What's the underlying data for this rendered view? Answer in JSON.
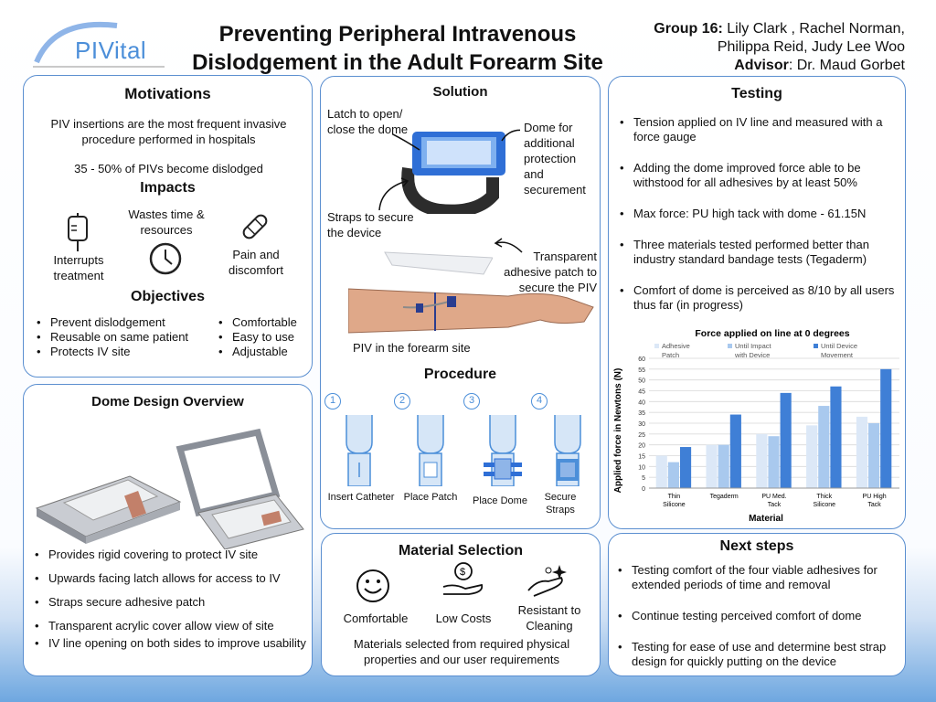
{
  "logo": {
    "text": "PIVital"
  },
  "title": {
    "line1": "Preventing Peripheral Intravenous",
    "line2": "Dislodgement in the Adult Forearm Site"
  },
  "group": {
    "label": "Group 16:",
    "line1": " Lily Clark , Rachel Norman,",
    "line2": "Philippa Reid, Judy Lee Woo",
    "advisor_label": "Advisor",
    "advisor_value": ": Dr. Maud Gorbet"
  },
  "motivations": {
    "title": "Motivations",
    "text1": "PIV insertions are the most frequent invasive procedure performed in hospitals",
    "text2": "35 - 50% of PIVs become dislodged",
    "impacts_title": "Impacts",
    "impact1": "Interrupts treatment",
    "impact2": "Wastes time & resources",
    "impact3": "Pain and discomfort",
    "objectives_title": "Objectives",
    "objectives_left": [
      "Prevent dislodgement",
      "Reusable on same patient",
      "Protects IV site"
    ],
    "objectives_right": [
      "Comfortable",
      "Easy to use",
      "Adjustable"
    ]
  },
  "dome": {
    "title": "Dome Design Overview",
    "bullets": [
      "Provides rigid covering to protect IV site",
      "Upwards facing latch allows for access to IV",
      "Straps secure adhesive patch",
      "Transparent acrylic cover allow view of site",
      "IV line opening on both sides to improve usability"
    ]
  },
  "solution": {
    "title": "Solution",
    "latch": "Latch to open/ close the dome",
    "dome": "Dome for additional protection and securement",
    "straps": "Straps to secure the device",
    "patch": "Transparent adhesive patch to secure the PIV",
    "piv": "PIV in the forearm site"
  },
  "procedure": {
    "title": "Procedure",
    "steps": [
      {
        "num": "1",
        "label": "Insert Catheter"
      },
      {
        "num": "2",
        "label": "Place Patch"
      },
      {
        "num": "3",
        "label": "Place Dome"
      },
      {
        "num": "4",
        "label": "Secure Straps"
      }
    ]
  },
  "material": {
    "title": "Material Selection",
    "items": [
      "Comfortable",
      "Low Costs",
      "Resistant to Cleaning"
    ],
    "text": "Materials selected from required physical properties and our user requirements"
  },
  "testing": {
    "title": "Testing",
    "bullets": [
      "Tension applied on IV line and measured with a force gauge",
      "Adding the dome improved force able to be withstood for all adhesives by at least 50%",
      "Max force: PU high tack with dome - 61.15N",
      "Three materials tested performed better than industry standard bandage tests (Tegaderm)",
      "Comfort of dome is perceived as 8/10 by all users thus far (in progress)"
    ]
  },
  "chart_data": {
    "type": "bar",
    "title": "Force applied on line at 0 degrees",
    "xlabel": "Material",
    "ylabel": "Applied force in Newtons (N)",
    "ylim": [
      0,
      60
    ],
    "yticks": [
      0,
      5,
      10,
      15,
      20,
      25,
      30,
      35,
      40,
      45,
      50,
      55,
      60
    ],
    "grid": true,
    "legend_position": "top",
    "categories": [
      "Thin Silicone",
      "Tegaderm",
      "PU Med. Tack",
      "Thick Silicone",
      "PU High Tack"
    ],
    "series": [
      {
        "name": "Adhesive Patch",
        "color": "#dce8f7",
        "values": [
          15,
          20,
          25,
          29,
          33
        ]
      },
      {
        "name": "Until Impact with Device",
        "color": "#a9c9ee",
        "values": [
          12,
          20,
          24,
          38,
          30
        ]
      },
      {
        "name": "Until Device Movement",
        "color": "#3f7fd6",
        "values": [
          19,
          34,
          44,
          47,
          55
        ]
      }
    ]
  },
  "next": {
    "title": "Next steps",
    "bullets": [
      "Testing comfort of the four viable adhesives for extended periods of time and removal",
      "Continue testing perceived comfort of dome",
      "Testing for ease of use and determine best strap design for quickly putting on the device"
    ]
  }
}
